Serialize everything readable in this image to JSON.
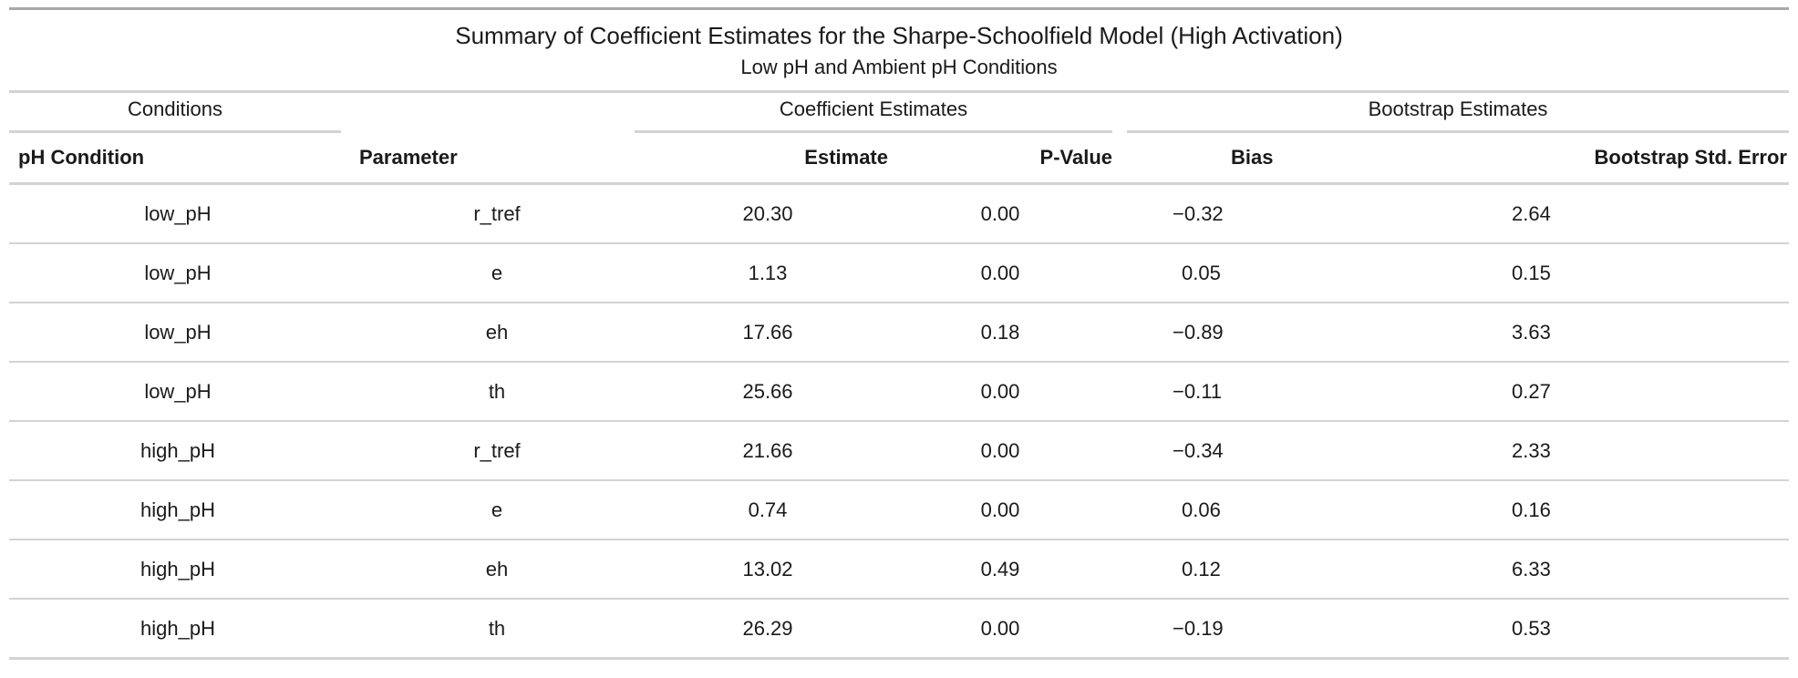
{
  "table": {
    "title": "Summary of Coefficient Estimates for the Sharpe-Schoolfield Model (High Activation)",
    "subtitle": "Low pH and Ambient pH Conditions",
    "spanners": {
      "conditions": "Conditions",
      "coefficient_estimates": "Coefficient Estimates",
      "bootstrap_estimates": "Bootstrap Estimates"
    },
    "columns": {
      "ph_condition": "pH Condition",
      "parameter": "Parameter",
      "estimate": "Estimate",
      "p_value": "P-Value",
      "bias": "Bias",
      "bootstrap_std_error": "Bootstrap Std. Error"
    },
    "rows": [
      {
        "ph_condition": "low_pH",
        "parameter": "r_tref",
        "estimate": "20.30",
        "p_value": "0.00",
        "bias": "−0.32",
        "bootstrap_std_error": "2.64"
      },
      {
        "ph_condition": "low_pH",
        "parameter": "e",
        "estimate": "1.13",
        "p_value": "0.00",
        "bias": "0.05",
        "bootstrap_std_error": "0.15"
      },
      {
        "ph_condition": "low_pH",
        "parameter": "eh",
        "estimate": "17.66",
        "p_value": "0.18",
        "bias": "−0.89",
        "bootstrap_std_error": "3.63"
      },
      {
        "ph_condition": "low_pH",
        "parameter": "th",
        "estimate": "25.66",
        "p_value": "0.00",
        "bias": "−0.11",
        "bootstrap_std_error": "0.27"
      },
      {
        "ph_condition": "high_pH",
        "parameter": "r_tref",
        "estimate": "21.66",
        "p_value": "0.00",
        "bias": "−0.34",
        "bootstrap_std_error": "2.33"
      },
      {
        "ph_condition": "high_pH",
        "parameter": "e",
        "estimate": "0.74",
        "p_value": "0.00",
        "bias": "0.06",
        "bootstrap_std_error": "0.16"
      },
      {
        "ph_condition": "high_pH",
        "parameter": "eh",
        "estimate": "13.02",
        "p_value": "0.49",
        "bias": "0.12",
        "bootstrap_std_error": "6.33"
      },
      {
        "ph_condition": "high_pH",
        "parameter": "th",
        "estimate": "26.29",
        "p_value": "0.00",
        "bias": "−0.19",
        "bootstrap_std_error": "0.53"
      }
    ]
  }
}
